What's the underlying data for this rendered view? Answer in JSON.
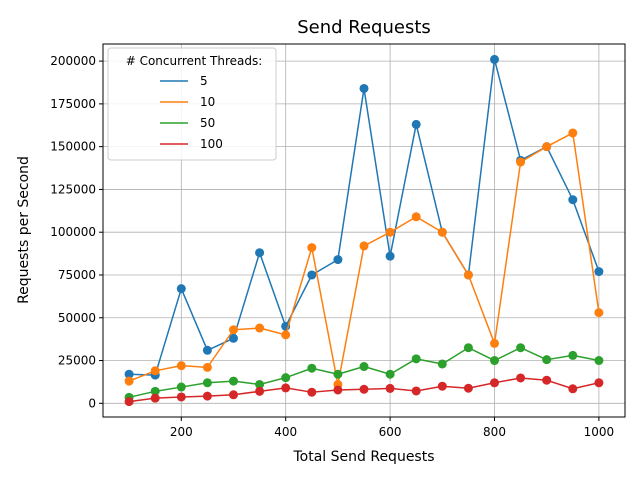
{
  "chart_data": {
    "type": "line",
    "title": "Send Requests",
    "xlabel": "Total Send Requests",
    "ylabel": "Requests per Second",
    "xlim": [
      50,
      1050
    ],
    "ylim": [
      -8000,
      210000
    ],
    "xticks": [
      200,
      400,
      600,
      800,
      1000
    ],
    "xtick_labels": [
      "200",
      "400",
      "600",
      "800",
      "1000"
    ],
    "yticks": [
      0,
      25000,
      50000,
      75000,
      100000,
      125000,
      150000,
      175000,
      200000
    ],
    "ytick_labels": [
      "0",
      "25000",
      "50000",
      "75000",
      "100000",
      "125000",
      "150000",
      "175000",
      "200000"
    ],
    "grid": true,
    "legend": {
      "title": "# Concurrent Threads:",
      "placement": "top-left"
    },
    "x": [
      100,
      150,
      200,
      250,
      300,
      350,
      400,
      450,
      500,
      550,
      600,
      650,
      700,
      750,
      800,
      850,
      900,
      950,
      1000
    ],
    "series": [
      {
        "name": "5",
        "color": "#1f77b4",
        "values": [
          17000,
          16500,
          67000,
          31000,
          38000,
          88000,
          45000,
          75000,
          84000,
          184000,
          86000,
          163000,
          100000,
          75000,
          201000,
          142000,
          150000,
          119000,
          77000
        ]
      },
      {
        "name": "10",
        "color": "#ff7f0e",
        "values": [
          13000,
          19000,
          22000,
          21000,
          43000,
          44000,
          40000,
          91000,
          11000,
          92000,
          100000,
          109000,
          100000,
          75000,
          35000,
          141000,
          150000,
          158000,
          53000
        ]
      },
      {
        "name": "50",
        "color": "#2ca02c",
        "values": [
          3500,
          7000,
          9500,
          12000,
          13000,
          11000,
          15000,
          20500,
          17000,
          21500,
          17000,
          26000,
          23000,
          32500,
          25000,
          32500,
          25500,
          28000,
          25000
        ]
      },
      {
        "name": "100",
        "color": "#d62728",
        "values": [
          1000,
          3000,
          3700,
          4200,
          5000,
          7000,
          9000,
          6500,
          7800,
          8200,
          8700,
          7200,
          10000,
          8800,
          12000,
          14800,
          13500,
          8500,
          12000
        ]
      }
    ]
  }
}
